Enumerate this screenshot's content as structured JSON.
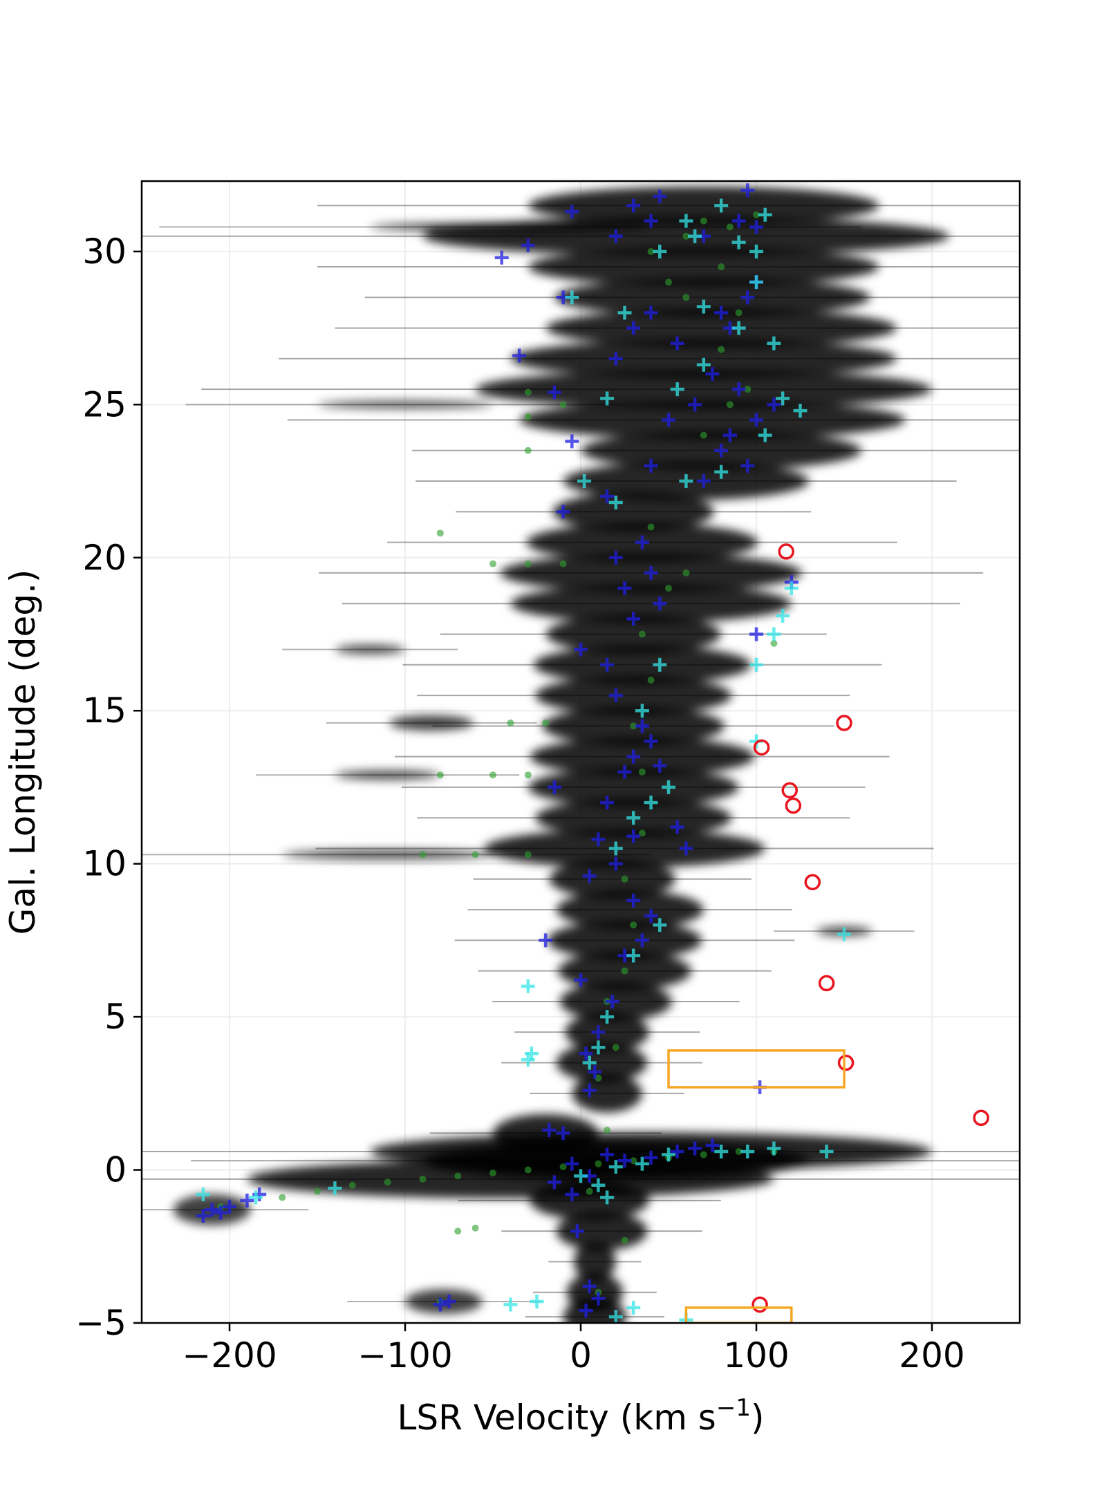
{
  "chart_data": {
    "type": "scatter",
    "title": "",
    "xlabel": "LSR Velocity (km s$^{-1}$)",
    "xlabel_main": "LSR Velocity (km s",
    "xlabel_sup": "−1",
    "xlabel_close": ")",
    "ylabel": "Gal. Longitude (deg.)",
    "xlim": [
      -250,
      250
    ],
    "ylim": [
      -5,
      32.3
    ],
    "grid": true,
    "legend": "none",
    "x_ticks": [
      {
        "value": -200,
        "label": "−200"
      },
      {
        "value": -100,
        "label": "−100"
      },
      {
        "value": 0,
        "label": "0"
      },
      {
        "value": 100,
        "label": "100"
      },
      {
        "value": 200,
        "label": "200"
      }
    ],
    "y_ticks": [
      {
        "value": -5,
        "label": "−5"
      },
      {
        "value": 0,
        "label": "0"
      },
      {
        "value": 5,
        "label": "5"
      },
      {
        "value": 10,
        "label": "10"
      },
      {
        "value": 15,
        "label": "15"
      },
      {
        "value": 20,
        "label": "20"
      },
      {
        "value": 25,
        "label": "25"
      },
      {
        "value": 30,
        "label": "30"
      }
    ],
    "colors": {
      "background_emission": "#000000",
      "green_points": "#2ca02c",
      "blue_crosses": "#1f1fe6",
      "cyan_crosses": "#33e6e6",
      "red_circles": "#e8141e",
      "orange_boxes": "#f5a623"
    },
    "emission_ridge": [
      {
        "l": -4.8,
        "v": 8,
        "w": 18
      },
      {
        "l": -4.0,
        "v": 8,
        "w": 16
      },
      {
        "l": -3.0,
        "v": 8,
        "w": 12
      },
      {
        "l": -2.0,
        "v": 12,
        "w": 26
      },
      {
        "l": -1.0,
        "v": 5,
        "w": 34
      },
      {
        "l": -0.3,
        "v": -40,
        "w": 150
      },
      {
        "l": 0.3,
        "v": 20,
        "w": 110
      },
      {
        "l": 0.6,
        "v": 40,
        "w": 160
      },
      {
        "l": 1.2,
        "v": -20,
        "w": 30
      },
      {
        "l": 2.5,
        "v": 15,
        "w": 20
      },
      {
        "l": 3.5,
        "v": 12,
        "w": 26
      },
      {
        "l": 4.5,
        "v": 15,
        "w": 24
      },
      {
        "l": 5.5,
        "v": 20,
        "w": 32
      },
      {
        "l": 6.5,
        "v": 25,
        "w": 38
      },
      {
        "l": 7.5,
        "v": 25,
        "w": 44
      },
      {
        "l": 8.5,
        "v": 28,
        "w": 42
      },
      {
        "l": 9.5,
        "v": 18,
        "w": 36
      },
      {
        "l": 10.5,
        "v": 25,
        "w": 80
      },
      {
        "l": 11.5,
        "v": 30,
        "w": 56
      },
      {
        "l": 12.5,
        "v": 30,
        "w": 60
      },
      {
        "l": 13.5,
        "v": 35,
        "w": 64
      },
      {
        "l": 14.5,
        "v": 30,
        "w": 52
      },
      {
        "l": 15.5,
        "v": 30,
        "w": 56
      },
      {
        "l": 16.5,
        "v": 35,
        "w": 62
      },
      {
        "l": 17.5,
        "v": 30,
        "w": 50
      },
      {
        "l": 18.5,
        "v": 40,
        "w": 80
      },
      {
        "l": 19.5,
        "v": 40,
        "w": 86
      },
      {
        "l": 20.5,
        "v": 35,
        "w": 66
      },
      {
        "l": 21.5,
        "v": 30,
        "w": 46
      },
      {
        "l": 22.5,
        "v": 60,
        "w": 70
      },
      {
        "l": 23.5,
        "v": 80,
        "w": 80
      },
      {
        "l": 24.5,
        "v": 75,
        "w": 110
      },
      {
        "l": 25.5,
        "v": 70,
        "w": 130
      },
      {
        "l": 26.5,
        "v": 70,
        "w": 110
      },
      {
        "l": 27.5,
        "v": 80,
        "w": 100
      },
      {
        "l": 28.5,
        "v": 75,
        "w": 90
      },
      {
        "l": 29.5,
        "v": 70,
        "w": 100
      },
      {
        "l": 30.5,
        "v": 60,
        "w": 150
      },
      {
        "l": 31.5,
        "v": 70,
        "w": 100
      }
    ],
    "emission_features": [
      {
        "l": -1.3,
        "v": -210,
        "w": 22,
        "h": 0.5
      },
      {
        "l": -4.3,
        "v": -78,
        "w": 22,
        "h": 0.4
      },
      {
        "l": 14.6,
        "v": -85,
        "w": 24,
        "h": 0.25
      },
      {
        "l": 12.9,
        "v": -110,
        "w": 30,
        "h": 0.15
      },
      {
        "l": 10.3,
        "v": -110,
        "w": 60,
        "h": 0.15
      },
      {
        "l": 7.8,
        "v": 150,
        "w": 16,
        "h": 0.15
      },
      {
        "l": 17.0,
        "v": -120,
        "w": 20,
        "h": 0.15
      },
      {
        "l": 30.8,
        "v": -40,
        "w": 80,
        "h": 0.15
      },
      {
        "l": 25.0,
        "v": -100,
        "w": 50,
        "h": 0.12
      }
    ],
    "series": [
      {
        "marker": "cross",
        "color_key": "blue_crosses",
        "points": [
          [
            -210,
            -1.3
          ],
          [
            -205,
            -1.4
          ],
          [
            -215,
            -1.5
          ],
          [
            -200,
            -1.2
          ],
          [
            -190,
            -1.0
          ],
          [
            -183,
            -0.8
          ],
          [
            -80,
            -4.4
          ],
          [
            -75,
            -4.3
          ],
          [
            -18,
            1.3
          ],
          [
            -10,
            1.2
          ],
          [
            -5,
            0.2
          ],
          [
            -2,
            -2.0
          ],
          [
            5,
            -3.8
          ],
          [
            3,
            -4.6
          ],
          [
            10,
            -4.2
          ],
          [
            -15,
            -0.4
          ],
          [
            -5,
            -0.8
          ],
          [
            5,
            -0.2
          ],
          [
            15,
            0.5
          ],
          [
            25,
            0.3
          ],
          [
            40,
            0.4
          ],
          [
            55,
            0.6
          ],
          [
            65,
            0.7
          ],
          [
            75,
            0.8
          ],
          [
            5,
            2.6
          ],
          [
            8,
            3.2
          ],
          [
            3,
            3.8
          ],
          [
            10,
            4.5
          ],
          [
            18,
            5.5
          ],
          [
            0,
            6.2
          ],
          [
            -20,
            7.5
          ],
          [
            25,
            7.0
          ],
          [
            35,
            7.5
          ],
          [
            40,
            8.3
          ],
          [
            30,
            8.8
          ],
          [
            5,
            9.6
          ],
          [
            20,
            10.0
          ],
          [
            10,
            10.8
          ],
          [
            30,
            10.9
          ],
          [
            55,
            11.2
          ],
          [
            60,
            10.5
          ],
          [
            -15,
            12.5
          ],
          [
            15,
            12.0
          ],
          [
            25,
            13.0
          ],
          [
            30,
            13.5
          ],
          [
            40,
            14.0
          ],
          [
            35,
            14.5
          ],
          [
            45,
            13.2
          ],
          [
            20,
            15.5
          ],
          [
            15,
            16.5
          ],
          [
            0,
            17.0
          ],
          [
            30,
            18.0
          ],
          [
            45,
            18.5
          ],
          [
            25,
            19.0
          ],
          [
            40,
            19.5
          ],
          [
            20,
            20.0
          ],
          [
            35,
            20.5
          ],
          [
            -10,
            21.5
          ],
          [
            15,
            22.0
          ],
          [
            40,
            23.0
          ],
          [
            70,
            22.5
          ],
          [
            80,
            23.5
          ],
          [
            95,
            23.0
          ],
          [
            85,
            24.0
          ],
          [
            100,
            24.5
          ],
          [
            110,
            25.0
          ],
          [
            90,
            25.5
          ],
          [
            75,
            26.0
          ],
          [
            65,
            25.0
          ],
          [
            50,
            24.5
          ],
          [
            -5,
            23.8
          ],
          [
            -15,
            25.4
          ],
          [
            -35,
            26.6
          ],
          [
            20,
            26.5
          ],
          [
            30,
            27.5
          ],
          [
            40,
            28.0
          ],
          [
            55,
            27.0
          ],
          [
            80,
            28.0
          ],
          [
            95,
            28.5
          ],
          [
            100,
            29.0
          ],
          [
            85,
            27.5
          ],
          [
            -10,
            28.5
          ],
          [
            -45,
            29.8
          ],
          [
            -30,
            30.2
          ],
          [
            -5,
            31.3
          ],
          [
            20,
            30.5
          ],
          [
            40,
            31.0
          ],
          [
            70,
            30.5
          ],
          [
            90,
            31.0
          ],
          [
            100,
            30.8
          ],
          [
            95,
            32.0
          ],
          [
            30,
            31.5
          ],
          [
            45,
            31.8
          ],
          [
            102,
            2.7
          ],
          [
            120,
            19.2
          ],
          [
            100,
            17.5
          ]
        ]
      },
      {
        "marker": "cross",
        "color_key": "cyan_crosses",
        "points": [
          [
            -215,
            -0.8
          ],
          [
            -185,
            -0.9
          ],
          [
            -140,
            -0.6
          ],
          [
            -40,
            -4.4
          ],
          [
            -25,
            -4.3
          ],
          [
            -30,
            3.6
          ],
          [
            -28,
            3.8
          ],
          [
            -30,
            6.0
          ],
          [
            0,
            -0.2
          ],
          [
            10,
            -0.5
          ],
          [
            15,
            -0.9
          ],
          [
            20,
            0.1
          ],
          [
            35,
            0.2
          ],
          [
            50,
            0.5
          ],
          [
            80,
            0.6
          ],
          [
            95,
            0.6
          ],
          [
            110,
            0.7
          ],
          [
            140,
            0.6
          ],
          [
            5,
            3.5
          ],
          [
            10,
            4.0
          ],
          [
            15,
            5.0
          ],
          [
            30,
            7.0
          ],
          [
            45,
            8.0
          ],
          [
            20,
            10.5
          ],
          [
            30,
            11.5
          ],
          [
            40,
            12.0
          ],
          [
            50,
            12.5
          ],
          [
            35,
            15.0
          ],
          [
            45,
            16.5
          ],
          [
            100,
            16.5
          ],
          [
            115,
            18.1
          ],
          [
            110,
            17.5
          ],
          [
            120,
            19.0
          ],
          [
            100,
            14.0
          ],
          [
            150,
            7.7
          ],
          [
            2,
            22.5
          ],
          [
            20,
            21.8
          ],
          [
            60,
            22.5
          ],
          [
            80,
            22.8
          ],
          [
            105,
            24.0
          ],
          [
            115,
            25.2
          ],
          [
            125,
            24.8
          ],
          [
            70,
            26.3
          ],
          [
            55,
            25.5
          ],
          [
            15,
            25.2
          ],
          [
            -5,
            28.5
          ],
          [
            25,
            28.0
          ],
          [
            70,
            28.2
          ],
          [
            90,
            27.5
          ],
          [
            110,
            27.0
          ],
          [
            100,
            29.0
          ],
          [
            45,
            30.0
          ],
          [
            60,
            31.0
          ],
          [
            90,
            30.3
          ],
          [
            100,
            30.0
          ],
          [
            105,
            31.2
          ],
          [
            80,
            31.5
          ],
          [
            65,
            30.5
          ],
          [
            60,
            -4.9
          ],
          [
            30,
            -4.5
          ],
          [
            20,
            -4.8
          ]
        ]
      },
      {
        "marker": "dot",
        "color_key": "green_points",
        "points": [
          [
            -205,
            -1.2
          ],
          [
            -170,
            -0.9
          ],
          [
            -150,
            -0.7
          ],
          [
            -130,
            -0.5
          ],
          [
            -110,
            -0.4
          ],
          [
            -90,
            -0.3
          ],
          [
            -70,
            -0.2
          ],
          [
            -50,
            -0.1
          ],
          [
            -30,
            0.0
          ],
          [
            -10,
            0.1
          ],
          [
            10,
            0.2
          ],
          [
            30,
            0.3
          ],
          [
            50,
            0.4
          ],
          [
            70,
            0.5
          ],
          [
            90,
            0.6
          ],
          [
            110,
            0.6
          ],
          [
            -60,
            -1.9
          ],
          [
            -70,
            -2.0
          ],
          [
            -80,
            -4.3
          ],
          [
            -30,
            10.3
          ],
          [
            -60,
            10.3
          ],
          [
            -90,
            10.3
          ],
          [
            -30,
            12.9
          ],
          [
            -50,
            12.9
          ],
          [
            -80,
            12.9
          ],
          [
            -20,
            14.6
          ],
          [
            -40,
            14.6
          ],
          [
            -10,
            19.8
          ],
          [
            -30,
            19.8
          ],
          [
            -50,
            19.8
          ],
          [
            -80,
            20.8
          ],
          [
            -30,
            25.4
          ],
          [
            -10,
            25.0
          ],
          [
            -30,
            24.6
          ],
          [
            -30,
            23.5
          ],
          [
            10,
            3.0
          ],
          [
            20,
            4.0
          ],
          [
            15,
            5.5
          ],
          [
            25,
            6.5
          ],
          [
            30,
            8.0
          ],
          [
            25,
            9.5
          ],
          [
            35,
            11.0
          ],
          [
            35,
            13.0
          ],
          [
            30,
            14.5
          ],
          [
            40,
            16.0
          ],
          [
            35,
            17.5
          ],
          [
            50,
            19.0
          ],
          [
            60,
            19.5
          ],
          [
            40,
            21.0
          ],
          [
            70,
            24.0
          ],
          [
            85,
            25.0
          ],
          [
            95,
            25.5
          ],
          [
            80,
            26.8
          ],
          [
            90,
            28.0
          ],
          [
            80,
            29.5
          ],
          [
            60,
            30.5
          ],
          [
            70,
            31.0
          ],
          [
            85,
            30.8
          ],
          [
            100,
            31.2
          ],
          [
            40,
            30.0
          ],
          [
            50,
            29.0
          ],
          [
            60,
            28.5
          ],
          [
            15,
            1.3
          ],
          [
            5,
            -0.7
          ],
          [
            110,
            17.2
          ],
          [
            25,
            -2.3
          ],
          [
            10,
            -4.0
          ]
        ]
      },
      {
        "marker": "circle",
        "color_key": "red_circles",
        "points": [
          [
            117,
            20.2
          ],
          [
            150,
            14.6
          ],
          [
            103,
            13.8
          ],
          [
            119,
            12.4
          ],
          [
            121,
            11.9
          ],
          [
            132,
            9.4
          ],
          [
            140,
            6.1
          ],
          [
            151,
            3.5
          ],
          [
            228,
            1.7
          ],
          [
            102,
            -4.4
          ]
        ]
      }
    ],
    "boxes": [
      {
        "v_min": 50,
        "v_max": 150,
        "l_min": 2.7,
        "l_max": 3.9,
        "color_key": "orange_boxes"
      },
      {
        "v_min": 60,
        "v_max": 120,
        "l_min": -5.0,
        "l_max": -4.5,
        "color_key": "orange_boxes"
      }
    ]
  }
}
